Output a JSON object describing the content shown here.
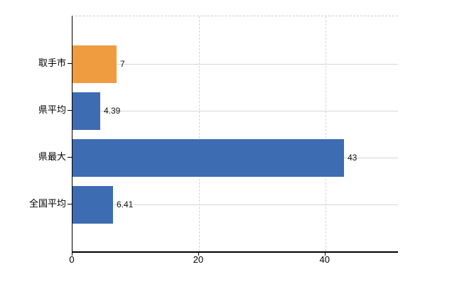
{
  "chart_data": {
    "type": "bar",
    "orientation": "horizontal",
    "title": "",
    "categories": [
      "取手市",
      "県平均",
      "県最大",
      "全国平均"
    ],
    "values": [
      7,
      4.39,
      43,
      6.41
    ],
    "value_labels": [
      "7",
      "4.39",
      "43",
      "6.41"
    ],
    "bar_colors": [
      "#EF9B40",
      "#3D6CB3",
      "#3D6CB3",
      "#3D6CB3"
    ],
    "x_ticks": [
      0,
      20,
      40
    ],
    "x_tick_labels": [
      "0",
      "20",
      "40"
    ],
    "xlim": [
      0,
      51.5
    ],
    "grid": true,
    "legend": false,
    "colors": {
      "accent_orange": "#EF9B40",
      "series_blue": "#3D6CB3",
      "gridline": "#d6d9d3",
      "axis": "#000000",
      "background": "#ffffff",
      "text": "#000000"
    }
  }
}
